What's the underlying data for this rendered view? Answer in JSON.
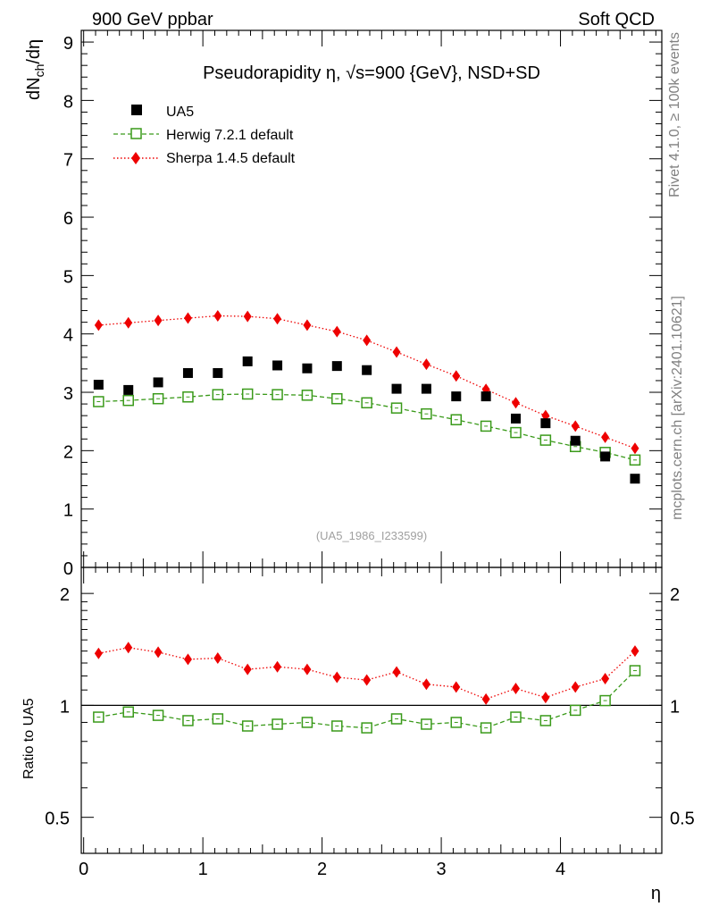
{
  "header": {
    "left_label": "900 GeV ppbar",
    "right_label": "Soft QCD",
    "side_rivet": "Rivet 4.1.0, ≥ 100k events",
    "side_mcplots": "mcplots.cern.ch [arXiv:2401.10621]"
  },
  "colors": {
    "data": "#000000",
    "herwig": "#3a9a1a",
    "sherpa": "#ee0000",
    "watermark": "#a0a0a0"
  },
  "chart_data": [
    {
      "type": "scatter",
      "title": "Pseudorapidity η, √s=900 {GeV}, NSD+SD",
      "ylabel": "dNch/dη",
      "ylabel_parts": {
        "main": "dN",
        "sub": "ch",
        "tail": "/dη"
      },
      "xlabel": "η",
      "xlim": [
        -0.02,
        4.85
      ],
      "ylim": [
        0,
        9.2
      ],
      "yticks": [
        0,
        1,
        2,
        3,
        4,
        5,
        6,
        7,
        8,
        9
      ],
      "watermark": "(UA5_1986_I233599)",
      "x": [
        0.125,
        0.375,
        0.625,
        0.875,
        1.125,
        1.375,
        1.625,
        1.875,
        2.125,
        2.375,
        2.625,
        2.875,
        3.125,
        3.375,
        3.625,
        3.875,
        4.125,
        4.375,
        4.625
      ],
      "series": [
        {
          "name": "UA5",
          "marker": "square",
          "values": [
            3.13,
            3.04,
            3.17,
            3.33,
            3.33,
            3.53,
            3.46,
            3.41,
            3.45,
            3.38,
            3.06,
            3.06,
            2.93,
            2.93,
            2.55,
            2.47,
            2.17,
            1.9,
            1.52
          ]
        },
        {
          "name": "Herwig 7.2.1 default",
          "marker": "open-square",
          "values": [
            2.84,
            2.86,
            2.89,
            2.92,
            2.96,
            2.97,
            2.96,
            2.95,
            2.89,
            2.82,
            2.73,
            2.63,
            2.53,
            2.42,
            2.31,
            2.18,
            2.07,
            1.97,
            1.84
          ]
        },
        {
          "name": "Sherpa 1.4.5 default",
          "marker": "diamond",
          "values": [
            4.15,
            4.19,
            4.23,
            4.27,
            4.31,
            4.3,
            4.26,
            4.15,
            4.04,
            3.89,
            3.69,
            3.48,
            3.28,
            3.05,
            2.82,
            2.6,
            2.42,
            2.23,
            2.04
          ]
        }
      ]
    },
    {
      "type": "scatter",
      "ylabel": "Ratio to UA5",
      "xlabel": "η",
      "xlim": [
        -0.02,
        4.85
      ],
      "ylim": [
        0.4,
        2.35
      ],
      "yscale": "log",
      "yticks": [
        0.5,
        1,
        2
      ],
      "xticks": [
        0,
        1,
        2,
        3,
        4
      ],
      "reference": 1,
      "x": [
        0.125,
        0.375,
        0.625,
        0.875,
        1.125,
        1.375,
        1.625,
        1.875,
        2.125,
        2.375,
        2.625,
        2.875,
        3.125,
        3.375,
        3.625,
        3.875,
        4.125,
        4.375,
        4.625
      ],
      "series": [
        {
          "name": "Herwig 7.2.1 default",
          "values": [
            0.93,
            0.96,
            0.94,
            0.91,
            0.92,
            0.88,
            0.89,
            0.9,
            0.88,
            0.87,
            0.92,
            0.89,
            0.9,
            0.87,
            0.93,
            0.91,
            0.97,
            1.03,
            1.24
          ]
        },
        {
          "name": "Sherpa 1.4.5 default",
          "values": [
            1.38,
            1.43,
            1.39,
            1.33,
            1.34,
            1.25,
            1.27,
            1.25,
            1.19,
            1.17,
            1.23,
            1.14,
            1.12,
            1.04,
            1.11,
            1.05,
            1.12,
            1.18,
            1.4
          ]
        }
      ]
    }
  ]
}
